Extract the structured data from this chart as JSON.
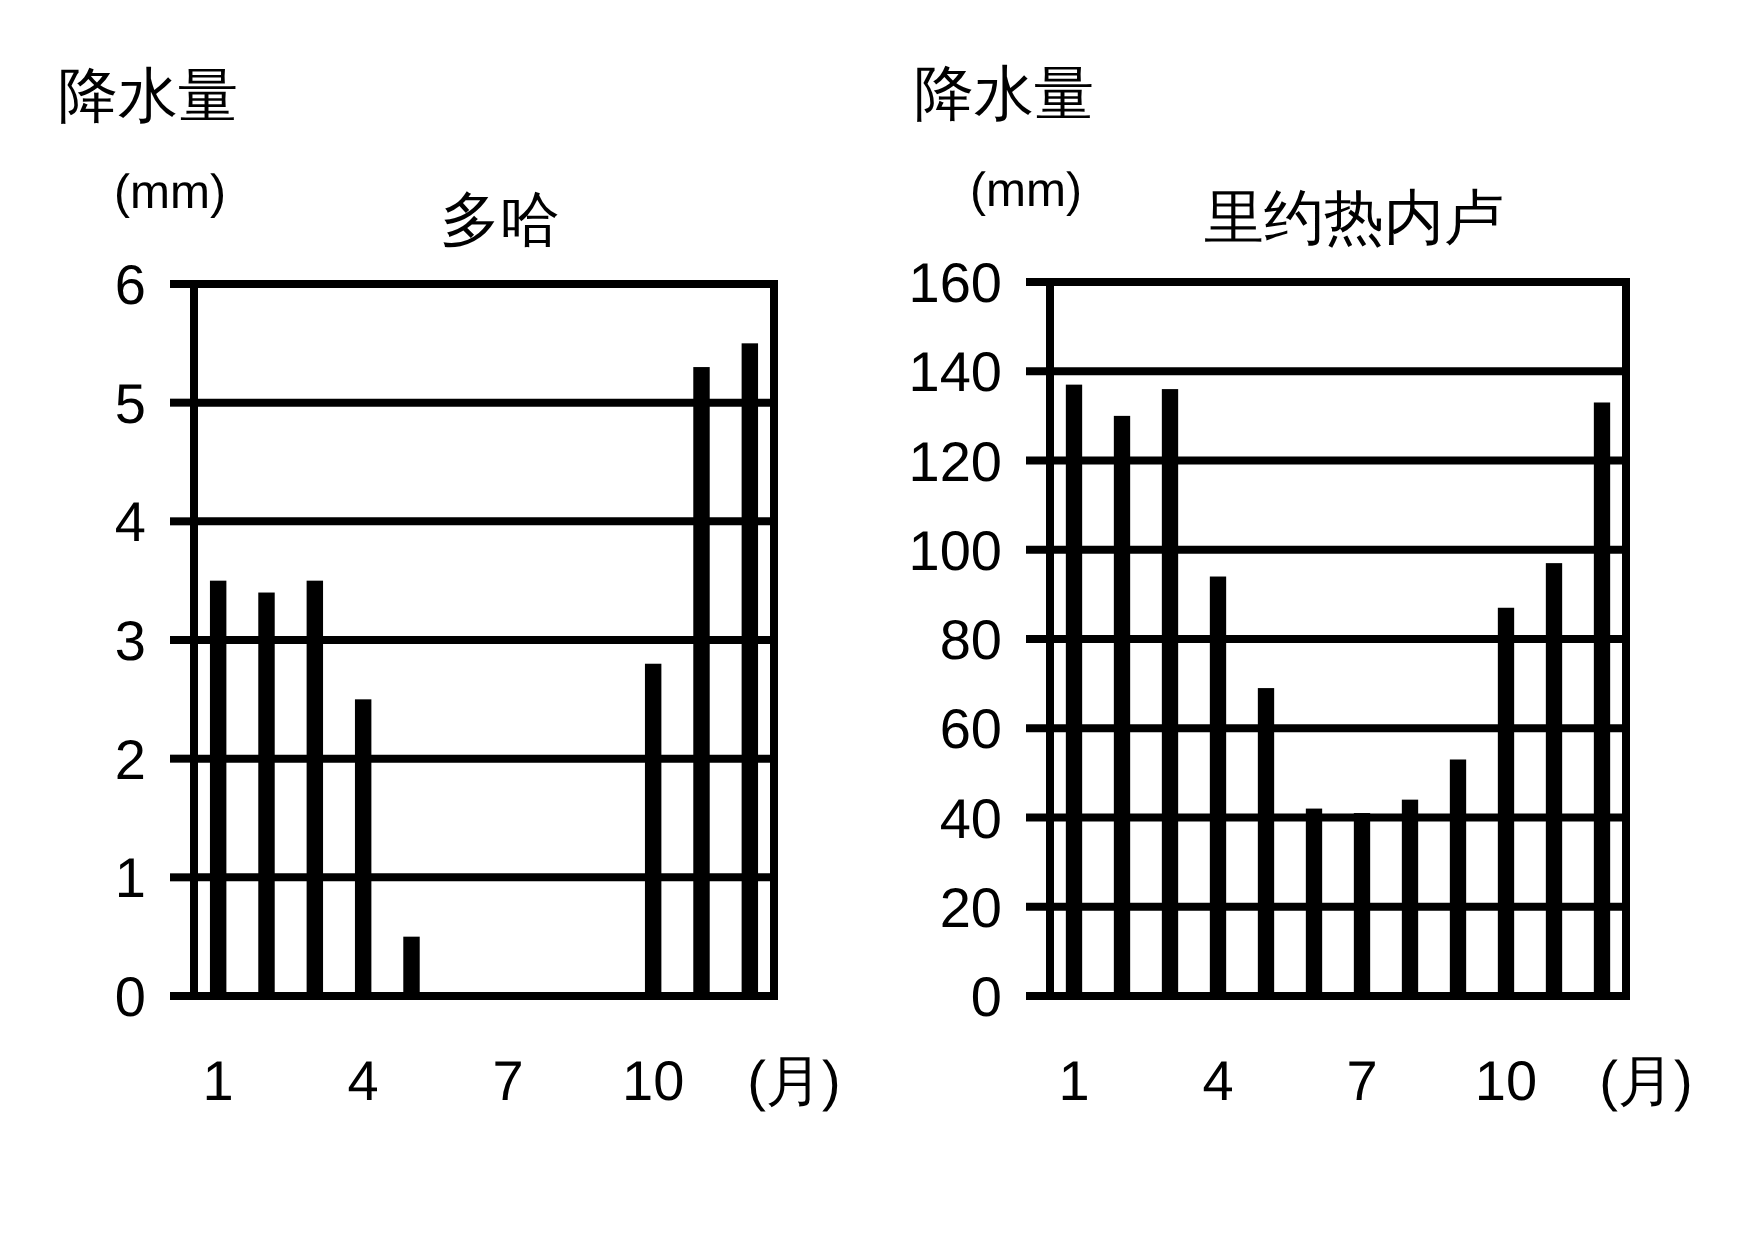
{
  "chart_data": [
    {
      "type": "bar",
      "title": "多哈",
      "ylabel": "降水量 (mm)",
      "xlabel": "(月)",
      "categories": [
        "1",
        null,
        null,
        "4",
        null,
        null,
        "7",
        null,
        null,
        "10",
        null,
        null
      ],
      "values": [
        3.5,
        3.4,
        3.5,
        2.5,
        0.5,
        0,
        0,
        0,
        0,
        2.8,
        5.3,
        5.5
      ],
      "color": "#000000",
      "ylim": [
        0,
        6
      ],
      "yticks": [
        0,
        1,
        2,
        3,
        4,
        5,
        6
      ],
      "grid": "y"
    },
    {
      "type": "bar",
      "title": "里约热内卢",
      "ylabel": "降水量 (mm)",
      "xlabel": "(月)",
      "categories": [
        "1",
        null,
        null,
        "4",
        null,
        null,
        "7",
        null,
        null,
        "10",
        null,
        null
      ],
      "values": [
        137,
        130,
        136,
        94,
        69,
        42,
        41,
        44,
        53,
        87,
        97,
        133
      ],
      "color": "#000000",
      "ylim": [
        0,
        160
      ],
      "yticks": [
        0,
        20,
        40,
        60,
        80,
        100,
        120,
        140,
        160
      ],
      "grid": "y"
    }
  ]
}
